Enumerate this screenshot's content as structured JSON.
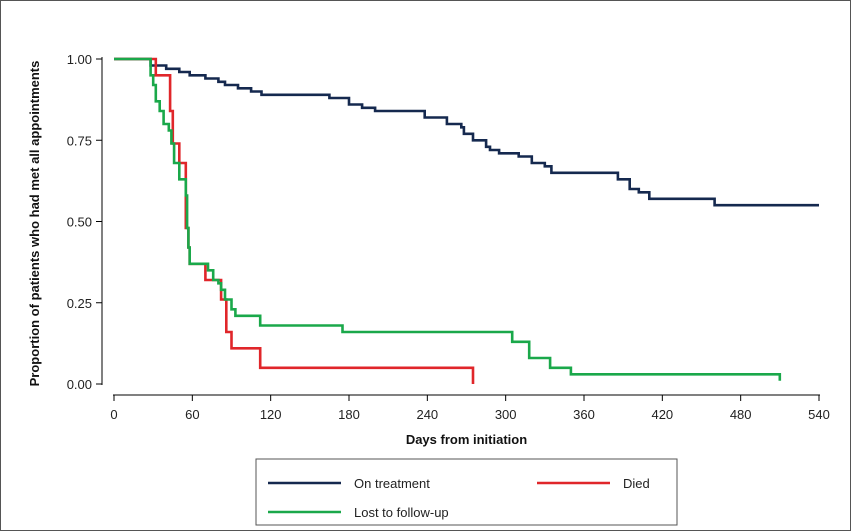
{
  "chart_data": {
    "type": "line",
    "step": true,
    "xlabel": "Days from initiation",
    "ylabel": "Proportion of patients who had met all appointments",
    "xlim": [
      0,
      540
    ],
    "ylim": [
      0,
      1
    ],
    "xticks": [
      0,
      60,
      120,
      180,
      240,
      300,
      360,
      420,
      480,
      540
    ],
    "yticks": [
      0,
      0.25,
      0.5,
      0.75,
      1
    ],
    "ytick_labels": [
      "0.00",
      "0.25",
      "0.50",
      "0.75",
      "1.00"
    ],
    "legend_position": "bottom",
    "series": [
      {
        "name": "On treatment",
        "color": "#15294f",
        "points": [
          [
            0,
            1.0
          ],
          [
            28,
            0.98
          ],
          [
            40,
            0.97
          ],
          [
            50,
            0.96
          ],
          [
            58,
            0.95
          ],
          [
            70,
            0.94
          ],
          [
            80,
            0.93
          ],
          [
            85,
            0.92
          ],
          [
            95,
            0.91
          ],
          [
            105,
            0.9
          ],
          [
            113,
            0.89
          ],
          [
            140,
            0.89
          ],
          [
            165,
            0.88
          ],
          [
            180,
            0.86
          ],
          [
            190,
            0.85
          ],
          [
            200,
            0.84
          ],
          [
            220,
            0.84
          ],
          [
            238,
            0.82
          ],
          [
            255,
            0.8
          ],
          [
            266,
            0.79
          ],
          [
            268,
            0.77
          ],
          [
            275,
            0.75
          ],
          [
            285,
            0.73
          ],
          [
            288,
            0.72
          ],
          [
            295,
            0.71
          ],
          [
            310,
            0.7
          ],
          [
            320,
            0.68
          ],
          [
            330,
            0.67
          ],
          [
            335,
            0.65
          ],
          [
            350,
            0.65
          ],
          [
            375,
            0.65
          ],
          [
            386,
            0.63
          ],
          [
            395,
            0.6
          ],
          [
            402,
            0.59
          ],
          [
            410,
            0.57
          ],
          [
            420,
            0.57
          ],
          [
            460,
            0.55
          ],
          [
            540,
            0.55
          ]
        ]
      },
      {
        "name": "Died",
        "color": "#e0262a",
        "points": [
          [
            0,
            1.0
          ],
          [
            27,
            1.0
          ],
          [
            32,
            0.95
          ],
          [
            42,
            0.95
          ],
          [
            43,
            0.84
          ],
          [
            45,
            0.74
          ],
          [
            50,
            0.68
          ],
          [
            55,
            0.48
          ],
          [
            57,
            0.42
          ],
          [
            58,
            0.37
          ],
          [
            70,
            0.32
          ],
          [
            78,
            0.32
          ],
          [
            82,
            0.26
          ],
          [
            86,
            0.16
          ],
          [
            90,
            0.11
          ],
          [
            112,
            0.05
          ],
          [
            275,
            0.05
          ],
          [
            275,
            0.0
          ]
        ]
      },
      {
        "name": "Lost to follow-up",
        "color": "#1aa84a",
        "points": [
          [
            0,
            1.0
          ],
          [
            26,
            1.0
          ],
          [
            28,
            0.95
          ],
          [
            30,
            0.92
          ],
          [
            32,
            0.87
          ],
          [
            35,
            0.84
          ],
          [
            38,
            0.8
          ],
          [
            42,
            0.78
          ],
          [
            44,
            0.74
          ],
          [
            46,
            0.68
          ],
          [
            50,
            0.63
          ],
          [
            55,
            0.58
          ],
          [
            56,
            0.48
          ],
          [
            57,
            0.42
          ],
          [
            58,
            0.37
          ],
          [
            68,
            0.37
          ],
          [
            72,
            0.35
          ],
          [
            76,
            0.32
          ],
          [
            80,
            0.31
          ],
          [
            82,
            0.29
          ],
          [
            85,
            0.26
          ],
          [
            90,
            0.23
          ],
          [
            93,
            0.21
          ],
          [
            112,
            0.18
          ],
          [
            175,
            0.16
          ],
          [
            275,
            0.16
          ],
          [
            305,
            0.13
          ],
          [
            318,
            0.08
          ],
          [
            334,
            0.05
          ],
          [
            350,
            0.03
          ],
          [
            505,
            0.03
          ],
          [
            510,
            0.01
          ]
        ]
      }
    ]
  }
}
